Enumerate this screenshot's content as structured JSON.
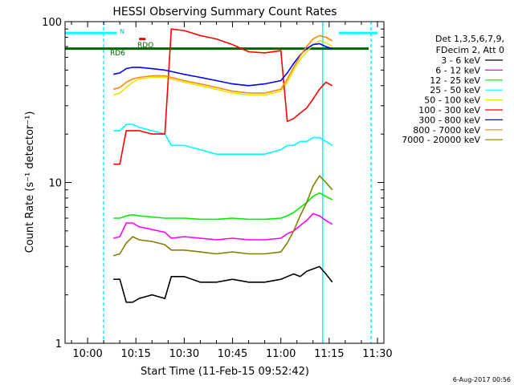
{
  "chart_data": {
    "type": "line",
    "title": "HESSI Observing Summary Count Rates",
    "xlabel": "Start Time (11-Feb-15 09:52:42)",
    "ylabel": "Count Rate (s⁻¹ detector⁻¹)",
    "yscale": "log",
    "xlim": [
      "09:53",
      "11:32"
    ],
    "ylim": [
      1,
      100
    ],
    "x_ticks": [
      "10:00",
      "10:15",
      "10:30",
      "10:45",
      "11:00",
      "11:15",
      "11:30"
    ],
    "y_ticks": [
      "1",
      "10",
      "100"
    ],
    "legend_placement": "right",
    "legend_header": [
      "Det 1,3,5,6,7,9,",
      "FDecim 2, Att 0"
    ],
    "annotations": {
      "flag_n": "N",
      "flag_rdo": "RDO",
      "flag_rd6": "RD6",
      "footer_date": "6-Aug-2017 00:56"
    },
    "x": [
      "10:08",
      "10:10",
      "10:12",
      "10:14",
      "10:16",
      "10:20",
      "10:24",
      "10:26",
      "10:30",
      "10:35",
      "10:40",
      "10:45",
      "10:50",
      "10:55",
      "11:00",
      "11:02",
      "11:04",
      "11:06",
      "11:08",
      "11:10",
      "11:12",
      "11:14",
      "11:16"
    ],
    "series": [
      {
        "name": "3 - 6 keV",
        "color": "#000000",
        "values": [
          2.5,
          2.5,
          1.8,
          1.8,
          1.9,
          2.0,
          1.9,
          2.6,
          2.6,
          2.4,
          2.4,
          2.5,
          2.4,
          2.4,
          2.5,
          2.6,
          2.7,
          2.6,
          2.8,
          2.9,
          3.0,
          2.7,
          2.4
        ]
      },
      {
        "name": "6 - 12 keV",
        "color": "#ff00ff",
        "values": [
          4.5,
          4.6,
          5.6,
          5.6,
          5.3,
          5.1,
          4.9,
          4.5,
          4.6,
          4.5,
          4.4,
          4.5,
          4.4,
          4.4,
          4.5,
          4.8,
          5.0,
          5.4,
          5.8,
          6.4,
          6.2,
          5.8,
          5.5
        ]
      },
      {
        "name": "12 - 25 keV",
        "color": "#00ee00",
        "values": [
          6.0,
          6.0,
          6.2,
          6.3,
          6.2,
          6.1,
          6.0,
          6.0,
          6.0,
          5.9,
          5.9,
          6.0,
          5.9,
          5.9,
          6.0,
          6.2,
          6.5,
          7.0,
          7.5,
          8.2,
          8.6,
          8.2,
          7.8
        ]
      },
      {
        "name": "25 - 50 keV",
        "color": "#00ffff",
        "values": [
          21,
          21,
          23,
          23,
          22,
          21,
          20,
          17,
          17,
          16,
          15,
          15,
          15,
          15,
          16,
          17,
          17,
          18,
          18,
          19,
          19,
          18,
          17
        ]
      },
      {
        "name": "50 - 100 keV",
        "color": "#e6e600",
        "values": [
          35,
          36,
          39,
          42,
          44,
          45,
          45,
          44,
          42,
          40,
          38,
          36,
          35,
          35,
          37,
          42,
          50,
          58,
          65,
          72,
          76,
          74,
          70
        ]
      },
      {
        "name": "100 - 300 keV",
        "color": "#ff0000",
        "values": [
          13,
          13,
          21,
          21,
          21,
          20,
          20,
          90,
          88,
          82,
          78,
          72,
          65,
          64,
          66,
          24,
          25,
          27,
          29,
          33,
          38,
          42,
          40
        ]
      },
      {
        "name": "300 - 800 keV",
        "color": "#0000ff",
        "values": [
          47,
          48,
          51,
          52,
          52,
          51,
          50,
          49,
          47,
          45,
          43,
          41,
          40,
          41,
          43,
          48,
          55,
          62,
          68,
          72,
          73,
          70,
          68
        ]
      },
      {
        "name": "800 - 7000 keV",
        "color": "#ff8800",
        "values": [
          38,
          39,
          42,
          44,
          45,
          46,
          46,
          45,
          43,
          41,
          39,
          37,
          36,
          36,
          38,
          44,
          52,
          61,
          70,
          78,
          82,
          80,
          76
        ]
      },
      {
        "name": "7000 - 20000 keV",
        "color": "#808000",
        "values": [
          3.5,
          3.6,
          4.2,
          4.6,
          4.4,
          4.3,
          4.1,
          3.8,
          3.8,
          3.7,
          3.6,
          3.7,
          3.6,
          3.6,
          3.7,
          4.2,
          5.0,
          6.2,
          7.5,
          9.5,
          11,
          10,
          9
        ]
      }
    ]
  }
}
